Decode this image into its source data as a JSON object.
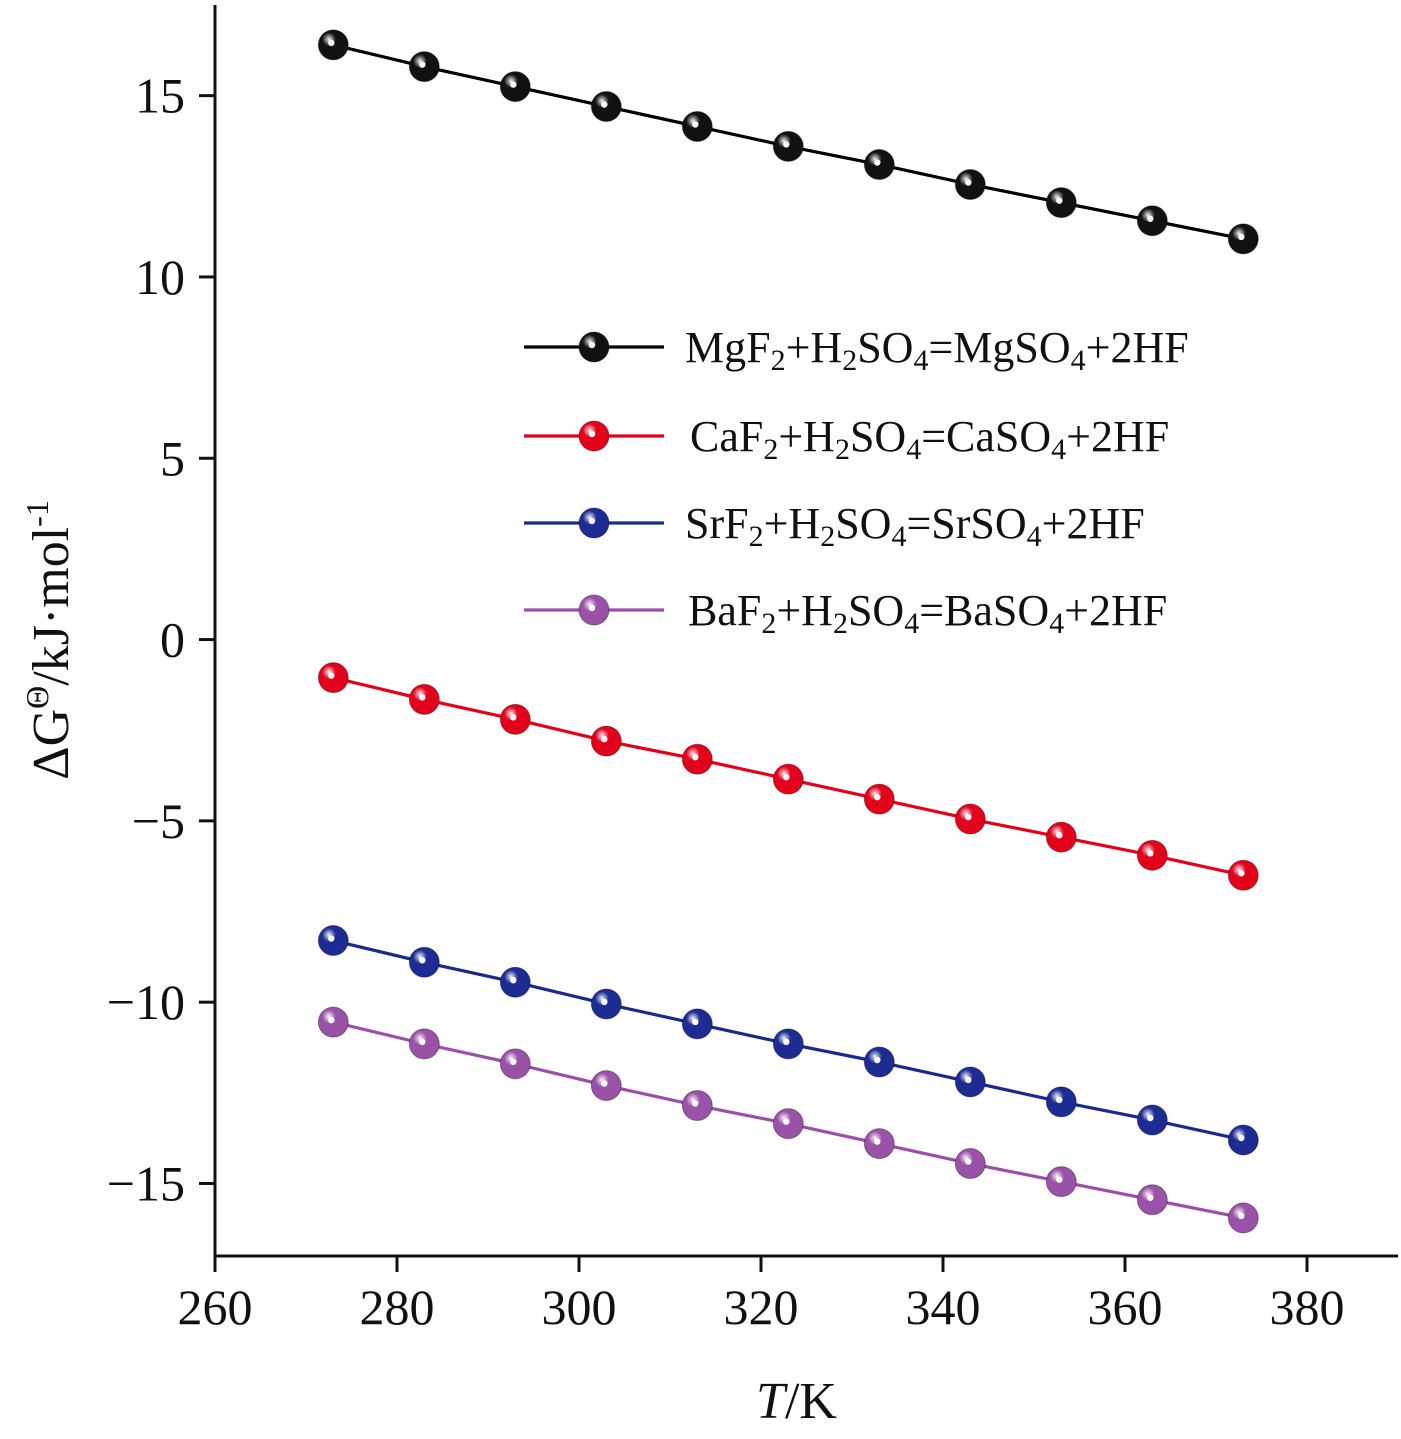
{
  "chart_data": {
    "type": "line",
    "title": "",
    "xlabel_var": "T",
    "xlabel_unit": "/K",
    "ylabel": "ΔGΘ/kJ·mol-1",
    "xlim": [
      260,
      390
    ],
    "ylim": [
      -17,
      17.5
    ],
    "xticks": [
      260,
      280,
      300,
      320,
      340,
      360,
      380
    ],
    "yticks": [
      15,
      10,
      5,
      0,
      -5,
      -10,
      -15
    ],
    "ytick_labels": [
      "15",
      "10",
      "5",
      "0",
      "−5",
      "−10",
      "−15"
    ],
    "legend_position": "upper-right-center",
    "grid": false,
    "x": [
      273,
      283,
      293,
      303,
      313,
      323,
      333,
      343,
      353,
      363,
      373
    ],
    "series": [
      {
        "name": "MgF2+H2SO4=MgSO4+2HF",
        "color": "#000000",
        "marker_color": "#111111",
        "values": [
          16.4,
          15.8,
          15.25,
          14.7,
          14.15,
          13.6,
          13.1,
          12.55,
          12.05,
          11.55,
          11.05
        ]
      },
      {
        "name": "CaF2+H2SO4=CaSO4+2HF",
        "color": "#e3001b",
        "marker_color": "#e3001b",
        "values": [
          -1.05,
          -1.65,
          -2.2,
          -2.8,
          -3.3,
          -3.85,
          -4.4,
          -4.95,
          -5.45,
          -5.95,
          -6.5
        ]
      },
      {
        "name": "SrF2+H2SO4=SrSO4+2HF",
        "color": "#1a2a8a",
        "marker_color": "#1c2c92",
        "values": [
          -8.3,
          -8.9,
          -9.45,
          -10.05,
          -10.6,
          -11.15,
          -11.65,
          -12.2,
          -12.75,
          -13.25,
          -13.8
        ]
      },
      {
        "name": "BaF2+H2SO4=BaSO4+2HF",
        "color": "#9b4fa6",
        "marker_color": "#9a52a8",
        "values": [
          -10.55,
          -11.15,
          -11.7,
          -12.3,
          -12.85,
          -13.35,
          -13.9,
          -14.45,
          -14.95,
          -15.45,
          -15.95
        ]
      }
    ],
    "legend_entries": [
      {
        "prefix": "MgF",
        "p1": "+H",
        "p2": "SO",
        "p3": "=MgSO",
        "p4": "+2HF",
        "s1": "2",
        "s2": "2",
        "s3": "4",
        "s4": "4"
      },
      {
        "prefix": "CaF",
        "p1": "+H",
        "p2": "SO",
        "p3": "=CaSO",
        "p4": "+2HF",
        "s1": "2",
        "s2": "2",
        "s3": "4",
        "s4": "4"
      },
      {
        "prefix": "SrF",
        "p1": "+H",
        "p2": "SO",
        "p3": "=SrSO",
        "p4": "+2HF",
        "s1": "2",
        "s2": "2",
        "s3": "4",
        "s4": "4"
      },
      {
        "prefix": "BaF",
        "p1": "+H",
        "p2": "SO",
        "p3": "=BaSO",
        "p4": "+2HF",
        "s1": "2",
        "s2": "2",
        "s3": "4",
        "s4": "4"
      }
    ],
    "ylabel_parts": {
      "delta": "ΔG",
      "sup": "Θ",
      "mid": "/kJ·mol",
      "sup2": "-1"
    }
  }
}
